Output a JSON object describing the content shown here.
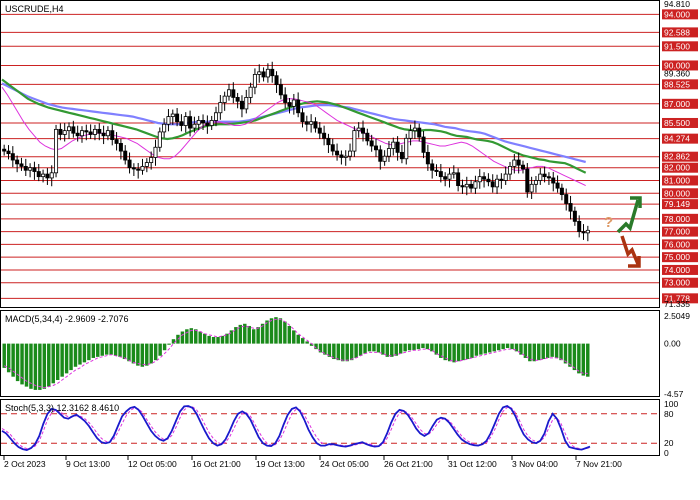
{
  "chart_data": {
    "type": "candlestick",
    "panels": {
      "price": {
        "title": "USCRUDE,H4",
        "ylim": [
          71.335,
          94.81
        ],
        "yticks": [
          "94.810",
          "94.000",
          "92.588",
          "91.500",
          "90.000",
          "89.360",
          "88.525",
          "87.000",
          "85.500",
          "84.274",
          "82.862",
          "82.000",
          "81.000",
          "80.000",
          "79.149",
          "78.000",
          "77.000",
          "76.000",
          "75.000",
          "74.000",
          "73.000",
          "71.778",
          "71.335"
        ],
        "levels": [
          94.0,
          92.588,
          91.5,
          90.0,
          88.525,
          87.0,
          85.5,
          84.274,
          82.862,
          82.0,
          81.0,
          80.0,
          79.149,
          78.0,
          77.0,
          76.0,
          75.0,
          74.0,
          73.0,
          71.778
        ],
        "closes": [
          83.3,
          83.1,
          82.6,
          82.3,
          82.1,
          81.8,
          82.0,
          81.7,
          81.3,
          81.5,
          81.2,
          81.6,
          85.0,
          84.6,
          84.9,
          85.2,
          84.7,
          84.5,
          84.9,
          84.8,
          84.6,
          85.0,
          84.7,
          84.5,
          84.9,
          84.2,
          83.9,
          83.3,
          82.6,
          82.0,
          81.9,
          81.8,
          82.1,
          82.4,
          82.8,
          83.6,
          84.8,
          85.4,
          86.0,
          86.2,
          85.6,
          85.3,
          86.0,
          85.1,
          85.4,
          85.7,
          85.5,
          85.3,
          85.7,
          86.3,
          87.1,
          87.6,
          88.1,
          87.5,
          87.2,
          86.6,
          87.5,
          88.3,
          89.3,
          89.5,
          89.1,
          89.7,
          89.2,
          88.5,
          87.7,
          87.1,
          86.8,
          87.3,
          86.3,
          85.6,
          85.4,
          85.6,
          85.1,
          84.7,
          84.3,
          83.8,
          83.3,
          83.0,
          82.8,
          82.9,
          83.3,
          84.9,
          85.1,
          84.7,
          84.1,
          83.7,
          83.4,
          82.5,
          82.9,
          83.5,
          84.0,
          83.2,
          82.7,
          84.3,
          84.9,
          85.1,
          84.4,
          83.2,
          82.3,
          81.8,
          81.7,
          81.3,
          81.1,
          81.5,
          81.6,
          80.6,
          80.5,
          80.7,
          80.4,
          80.9,
          81.3,
          81.1,
          80.9,
          80.5,
          81.1,
          81.0,
          81.5,
          82.1,
          82.6,
          82.2,
          81.9,
          80.1,
          80.7,
          81.0,
          81.5,
          81.3,
          81.2,
          80.8,
          80.4,
          79.9,
          79.2,
          78.6,
          77.8,
          77.0,
          76.9,
          77.1
        ],
        "ma_series": [
          {
            "color": "#8080ff",
            "values": [
              88.6,
              88.4,
              88.2,
              88.0,
              87.8,
              87.6,
              87.45,
              87.3,
              87.15,
              87.0,
              86.9,
              86.8,
              86.7,
              86.65,
              86.6,
              86.55,
              86.5,
              86.45,
              86.4,
              86.35,
              86.3,
              86.25,
              86.2,
              86.15,
              86.1,
              86.05,
              86.0,
              85.9,
              85.8,
              85.7,
              85.6,
              85.5,
              85.45,
              85.4,
              85.4,
              85.4,
              85.45,
              85.5,
              85.55,
              85.6,
              85.6,
              85.6,
              85.6,
              85.6,
              85.6,
              85.6,
              85.6,
              85.6,
              85.65,
              85.7,
              85.8,
              85.9,
              86.0,
              86.1,
              86.2,
              86.3,
              86.4,
              86.5,
              86.6,
              86.7,
              86.75,
              86.8,
              86.85,
              86.9,
              86.9,
              86.9,
              86.85,
              86.8,
              86.75,
              86.7,
              86.6,
              86.5,
              86.4,
              86.3,
              86.2,
              86.1,
              86.0,
              85.9,
              85.8,
              85.75,
              85.7,
              85.65,
              85.6,
              85.55,
              85.5,
              85.45,
              85.4,
              85.3,
              85.2,
              85.15,
              85.1,
              85.0,
              84.9,
              84.85,
              84.8,
              84.75,
              84.65,
              84.5,
              84.35,
              84.2,
              84.05,
              83.95,
              83.85,
              83.75,
              83.65,
              83.55,
              83.45,
              83.35,
              83.25,
              83.15,
              83.05,
              82.95,
              82.85,
              82.75,
              82.65,
              82.55,
              82.45
            ]
          },
          {
            "color": "#339933",
            "values": [
              88.9,
              88.6,
              88.3,
              88.0,
              87.7,
              87.4,
              87.2,
              87.0,
              86.85,
              86.7,
              86.6,
              86.5,
              86.4,
              86.3,
              86.2,
              86.1,
              86.0,
              85.9,
              85.8,
              85.7,
              85.6,
              85.5,
              85.4,
              85.3,
              85.2,
              85.1,
              85.0,
              84.85,
              84.7,
              84.55,
              84.4,
              84.3,
              84.25,
              84.3,
              84.4,
              84.55,
              84.75,
              84.9,
              85.05,
              85.2,
              85.3,
              85.35,
              85.4,
              85.4,
              85.4,
              85.45,
              85.5,
              85.55,
              85.6,
              85.7,
              85.85,
              86.0,
              86.15,
              86.3,
              86.45,
              86.6,
              86.75,
              86.9,
              87.0,
              87.1,
              87.15,
              87.2,
              87.15,
              87.1,
              87.0,
              86.9,
              86.75,
              86.6,
              86.45,
              86.3,
              86.15,
              86.0,
              85.85,
              85.7,
              85.55,
              85.4,
              85.25,
              85.1,
              85.0,
              84.95,
              84.9,
              84.9,
              84.95,
              84.95,
              84.9,
              84.85,
              84.75,
              84.6,
              84.5,
              84.45,
              84.4,
              84.3,
              84.2,
              84.15,
              84.1,
              84.0,
              83.85,
              83.65,
              83.45,
              83.25,
              83.1,
              82.95,
              82.85,
              82.75,
              82.65,
              82.6,
              82.5,
              82.45,
              82.4,
              82.35,
              82.2,
              82.0,
              81.8,
              81.6
            ]
          },
          {
            "color": "#dd33dd",
            "values": [
              88.3,
              87.7,
              87.0,
              86.3,
              85.6,
              85.0,
              84.5,
              84.0,
              83.7,
              83.5,
              83.4,
              83.5,
              83.8,
              84.1,
              84.3,
              84.5,
              84.6,
              84.7,
              84.7,
              84.7,
              84.6,
              84.5,
              84.4,
              84.3,
              84.1,
              83.9,
              83.6,
              83.3,
              83.0,
              82.8,
              82.7,
              82.7,
              82.9,
              83.3,
              83.8,
              84.3,
              84.8,
              85.2,
              85.5,
              85.6,
              85.6,
              85.5,
              85.4,
              85.3,
              85.3,
              85.4,
              85.6,
              85.9,
              86.2,
              86.5,
              86.8,
              87.1,
              87.3,
              87.4,
              87.4,
              87.3,
              87.2,
              87.1,
              86.9,
              86.6,
              86.3,
              86.0,
              85.7,
              85.5,
              85.3,
              85.1,
              84.9,
              84.7,
              84.5,
              84.3,
              84.1,
              83.9,
              83.8,
              83.8,
              83.9,
              84.0,
              84.1,
              84.1,
              84.0,
              83.9,
              83.8,
              83.7,
              83.7,
              83.8,
              83.9,
              84.0,
              83.9,
              83.7,
              83.4,
              83.1,
              82.8,
              82.5,
              82.3,
              82.1,
              81.9,
              81.8,
              81.8,
              81.9,
              82.0,
              82.1,
              82.1,
              82.0,
              81.8,
              81.6,
              81.4,
              81.2,
              81.0,
              80.8,
              80.6
            ]
          }
        ],
        "signal_arrows": [
          {
            "direction": "up",
            "color": "#2a7a2a"
          },
          {
            "direction": "down",
            "color": "#aa3311"
          }
        ],
        "question_mark": "?"
      },
      "macd": {
        "title": "MACD(5,34,4) -2.9609 -2.7076",
        "yticks": [
          "2.5049",
          "0.00",
          "-4.57"
        ],
        "ylim": [
          -4.57,
          2.5049
        ],
        "histogram": [
          -2.2,
          -2.6,
          -3.0,
          -3.4,
          -3.7,
          -3.9,
          -4.1,
          -4.2,
          -4.2,
          -4.1,
          -3.9,
          -3.6,
          -3.3,
          -3.0,
          -2.7,
          -2.4,
          -2.1,
          -1.9,
          -1.7,
          -1.5,
          -1.3,
          -1.2,
          -1.1,
          -1.0,
          -1.0,
          -1.1,
          -1.2,
          -1.4,
          -1.6,
          -1.8,
          -2.0,
          -2.1,
          -2.0,
          -1.8,
          -1.5,
          -1.1,
          -0.6,
          -0.1,
          0.4,
          0.8,
          1.1,
          1.3,
          1.4,
          1.3,
          1.1,
          0.9,
          0.7,
          0.6,
          0.6,
          0.7,
          0.9,
          1.2,
          1.5,
          1.7,
          1.8,
          1.6,
          1.3,
          1.5,
          1.8,
          2.1,
          2.3,
          2.4,
          2.3,
          2.0,
          1.6,
          1.2,
          0.8,
          0.5,
          0.2,
          -0.2,
          -0.5,
          -0.8,
          -1.0,
          -1.2,
          -1.4,
          -1.5,
          -1.6,
          -1.6,
          -1.5,
          -1.3,
          -1.1,
          -0.9,
          -0.7,
          -0.7,
          -0.8,
          -1.0,
          -1.2,
          -1.2,
          -1.1,
          -0.9,
          -0.7,
          -0.6,
          -0.6,
          -0.5,
          -0.4,
          -0.5,
          -0.7,
          -1.0,
          -1.3,
          -1.5,
          -1.6,
          -1.7,
          -1.6,
          -1.5,
          -1.4,
          -1.3,
          -1.1,
          -1.0,
          -0.9,
          -0.8,
          -0.7,
          -0.6,
          -0.5,
          -0.4,
          -0.5,
          -0.7,
          -1.0,
          -1.3,
          -1.6,
          -1.6,
          -1.5,
          -1.4,
          -1.3,
          -1.2,
          -1.3,
          -1.5,
          -1.8,
          -2.1,
          -2.4,
          -2.7,
          -2.9,
          -3.0
        ],
        "signal": [
          -2.0,
          -2.2,
          -2.5,
          -2.8,
          -3.1,
          -3.4,
          -3.6,
          -3.8,
          -3.9,
          -4.0,
          -3.9,
          -3.8,
          -3.6,
          -3.3,
          -3.0,
          -2.7,
          -2.4,
          -2.2,
          -1.9,
          -1.7,
          -1.5,
          -1.3,
          -1.2,
          -1.1,
          -1.0,
          -1.1,
          -1.2,
          -1.3,
          -1.5,
          -1.7,
          -1.8,
          -1.9,
          -1.9,
          -1.8,
          -1.6,
          -1.3,
          -0.9,
          -0.5,
          0.0,
          0.4,
          0.8,
          1.0,
          1.2,
          1.2,
          1.1,
          0.9,
          0.8,
          0.7,
          0.6,
          0.7,
          0.8,
          1.0,
          1.3,
          1.5,
          1.6,
          1.5,
          1.4,
          1.4,
          1.6,
          1.9,
          2.1,
          2.2,
          2.2,
          2.0,
          1.7,
          1.3,
          0.9,
          0.6,
          0.3,
          0.0,
          -0.4,
          -0.7,
          -0.9,
          -1.1,
          -1.3,
          -1.4,
          -1.5,
          -1.5,
          -1.4,
          -1.3,
          -1.1,
          -0.9,
          -0.8,
          -0.8,
          -0.8,
          -0.9,
          -1.1,
          -1.1,
          -1.0,
          -0.9,
          -0.8,
          -0.7,
          -0.6,
          -0.6,
          -0.5,
          -0.5,
          -0.6,
          -0.9,
          -1.1,
          -1.3,
          -1.5,
          -1.6,
          -1.6,
          -1.5,
          -1.4,
          -1.3,
          -1.2,
          -1.1,
          -1.0,
          -0.9,
          -0.8,
          -0.7,
          -0.6,
          -0.5,
          -0.5,
          -0.6,
          -0.9,
          -1.1,
          -1.4,
          -1.5,
          -1.5,
          -1.4,
          -1.3,
          -1.3,
          -1.3,
          -1.4,
          -1.6,
          -1.9,
          -2.2,
          -2.5,
          -2.7,
          -2.7
        ]
      },
      "stoch": {
        "title": "Stoch(5,3,3) 12.3162 8.4610",
        "yticks": [
          "100",
          "80",
          "20",
          "0"
        ],
        "levels": [
          80,
          20
        ],
        "ylim": [
          0,
          100
        ],
        "main": [
          45,
          40,
          30,
          20,
          12,
          8,
          6,
          10,
          18,
          35,
          60,
          80,
          90,
          88,
          80,
          72,
          70,
          75,
          78,
          72,
          65,
          55,
          42,
          30,
          22,
          20,
          22,
          35,
          55,
          75,
          85,
          92,
          94,
          88,
          75,
          60,
          45,
          35,
          28,
          25,
          30,
          45,
          65,
          85,
          95,
          96,
          92,
          80,
          62,
          45,
          30,
          20,
          15,
          18,
          28,
          45,
          65,
          80,
          85,
          80,
          68,
          50,
          32,
          20,
          15,
          14,
          20,
          35,
          58,
          78,
          90,
          93,
          85,
          68,
          48,
          32,
          20,
          15,
          15,
          18,
          18,
          16,
          14,
          13,
          15,
          18,
          20,
          22,
          18,
          15,
          13,
          14,
          22,
          40,
          62,
          80,
          88,
          86,
          78,
          65,
          50,
          40,
          35,
          40,
          55,
          68,
          72,
          70,
          62,
          50,
          38,
          28,
          22,
          18,
          16,
          15,
          18,
          25,
          40,
          60,
          80,
          93,
          96,
          90,
          75,
          55,
          38,
          28,
          22,
          20,
          25,
          40,
          65,
          80,
          70,
          50,
          25,
          12,
          10,
          8,
          7,
          10,
          13
        ],
        "signal": [
          50,
          45,
          38,
          28,
          18,
          12,
          9,
          10,
          14,
          25,
          45,
          68,
          82,
          88,
          85,
          78,
          74,
          74,
          76,
          75,
          70,
          62,
          52,
          40,
          30,
          24,
          22,
          28,
          42,
          60,
          76,
          87,
          92,
          90,
          82,
          68,
          55,
          43,
          34,
          28,
          28,
          36,
          52,
          72,
          88,
          94,
          94,
          88,
          74,
          58,
          42,
          30,
          22,
          18,
          22,
          33,
          50,
          68,
          80,
          82,
          75,
          60,
          44,
          30,
          20,
          16,
          17,
          26,
          42,
          62,
          80,
          89,
          88,
          78,
          62,
          46,
          32,
          22,
          17,
          16,
          17,
          17,
          16,
          15,
          14,
          16,
          18,
          20,
          20,
          18,
          15,
          14,
          18,
          30,
          48,
          68,
          82,
          86,
          82,
          72,
          60,
          48,
          40,
          38,
          46,
          58,
          68,
          70,
          66,
          56,
          45,
          35,
          27,
          22,
          18,
          16,
          17,
          21,
          32,
          48,
          68,
          85,
          93,
          92,
          82,
          66,
          48,
          35,
          27,
          23,
          24,
          32,
          50,
          68,
          72,
          60,
          40,
          22,
          13,
          10,
          8,
          9,
          11
        ]
      }
    },
    "x_axis": {
      "labels": [
        "2 Oct 2023",
        "9 Oct 13:00",
        "12 Oct 05:00",
        "16 Oct 21:00",
        "19 Oct 13:00",
        "24 Oct 05:00",
        "26 Oct 21:00",
        "31 Oct 12:00",
        "3 Nov 04:00",
        "7 Nov 21:00"
      ]
    }
  }
}
